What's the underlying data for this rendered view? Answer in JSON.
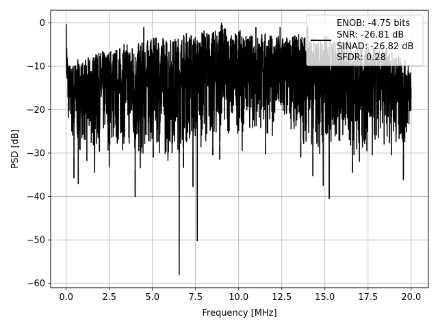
{
  "chart_data": {
    "type": "line",
    "title": "",
    "xlabel": "Frequency [MHz]",
    "ylabel": "PSD [dB]",
    "xlim": [
      -0.9,
      21.0
    ],
    "ylim": [
      -61.0,
      2.9
    ],
    "xticks": [
      0.0,
      2.5,
      5.0,
      7.5,
      10.0,
      12.5,
      15.0,
      17.5,
      20.0
    ],
    "xtick_labels": [
      "0.0",
      "2.5",
      "5.0",
      "7.5",
      "10.0",
      "12.5",
      "15.0",
      "17.5",
      "20.0"
    ],
    "yticks": [
      0,
      -10,
      -20,
      -30,
      -40,
      -50,
      -60
    ],
    "ytick_labels": [
      "0",
      "−10",
      "−20",
      "−30",
      "−40",
      "−50",
      "−60"
    ],
    "grid": true,
    "legend_placement": "top-right",
    "legend_entries": [
      "ENOB: -4.75 bits",
      "SNR: -26.81 dB",
      "SINAD: -26.82 dB",
      "SFDR: 0.28"
    ],
    "series": [
      {
        "color": "#000000",
        "x": [
          0.0,
          0.05,
          0.1,
          0.15,
          0.2,
          0.3,
          0.4,
          0.5,
          0.6,
          0.7,
          0.8,
          0.9,
          1.0,
          1.2,
          1.5,
          1.8,
          2.0,
          2.5,
          3.0,
          3.5,
          4.0,
          4.5,
          5.0,
          5.5,
          6.0,
          6.5,
          6.6,
          7.0,
          7.5,
          7.6,
          8.0,
          8.5,
          9.0,
          9.5,
          10.0,
          10.5,
          11.0,
          11.5,
          12.0,
          12.5,
          13.0,
          13.5,
          14.0,
          14.5,
          15.0,
          15.2,
          15.5,
          16.0,
          16.5,
          17.0,
          17.5,
          18.0,
          18.5,
          19.0,
          19.5,
          19.8,
          20.0
        ],
        "upper": [
          -0.3,
          -5.0,
          -8.0,
          -9.5,
          -9.0,
          -10.0,
          -9.0,
          -8.5,
          -9.5,
          -8.0,
          -9.0,
          -8.5,
          -9.0,
          -8.0,
          -7.5,
          -7.0,
          -6.5,
          -6.0,
          -5.5,
          -4.5,
          -5.0,
          -4.0,
          -3.5,
          -3.0,
          -3.5,
          -3.0,
          -2.5,
          -2.0,
          -2.5,
          -3.0,
          -1.5,
          -2.0,
          0.0,
          -2.5,
          -1.5,
          -3.0,
          -2.5,
          -2.0,
          -3.0,
          -2.5,
          -3.5,
          -2.0,
          -3.0,
          -3.5,
          -2.5,
          -3.0,
          -4.0,
          -3.5,
          -4.5,
          -5.0,
          -4.5,
          -6.0,
          -5.5,
          -7.0,
          -8.0,
          -9.0,
          -9.5
        ],
        "lower": [
          -14.0,
          -22.0,
          -24.0,
          -25.0,
          -24.0,
          -28.0,
          -30.0,
          -32.0,
          -28.0,
          -33.0,
          -30.0,
          -27.0,
          -29.0,
          -31.0,
          -30.0,
          -33.0,
          -29.0,
          -30.0,
          -31.0,
          -29.0,
          -34.0,
          -33.0,
          -28.0,
          -31.0,
          -32.0,
          -30.0,
          -31.0,
          -29.0,
          -30.0,
          -31.0,
          -27.0,
          -29.0,
          -28.0,
          -27.0,
          -26.0,
          -25.0,
          -27.0,
          -28.0,
          -26.0,
          -27.0,
          -25.0,
          -27.0,
          -29.0,
          -31.0,
          -33.0,
          -31.0,
          -29.0,
          -30.0,
          -31.0,
          -32.0,
          -31.0,
          -30.0,
          -29.0,
          -28.0,
          -31.0,
          -27.0,
          -26.0
        ]
      }
    ],
    "dips": [
      {
        "x": 0.45,
        "y": -35.8
      },
      {
        "x": 0.7,
        "y": -37.1
      },
      {
        "x": 1.2,
        "y": -31.8
      },
      {
        "x": 1.65,
        "y": -34.5
      },
      {
        "x": 2.5,
        "y": -33.2
      },
      {
        "x": 4.0,
        "y": -40.1
      },
      {
        "x": 4.3,
        "y": -33.5
      },
      {
        "x": 5.05,
        "y": -31.0
      },
      {
        "x": 5.9,
        "y": -31.0
      },
      {
        "x": 6.55,
        "y": -58.1
      },
      {
        "x": 6.8,
        "y": -33.4
      },
      {
        "x": 7.35,
        "y": -37.8
      },
      {
        "x": 7.6,
        "y": -50.3
      },
      {
        "x": 8.5,
        "y": -30.5
      },
      {
        "x": 8.9,
        "y": -31.5
      },
      {
        "x": 10.2,
        "y": -29.5
      },
      {
        "x": 11.55,
        "y": -30.3
      },
      {
        "x": 13.6,
        "y": -31.0
      },
      {
        "x": 14.3,
        "y": -35.3
      },
      {
        "x": 14.9,
        "y": -37.5
      },
      {
        "x": 15.25,
        "y": -40.5
      },
      {
        "x": 16.6,
        "y": -34.5
      },
      {
        "x": 17.0,
        "y": -30.0
      },
      {
        "x": 17.75,
        "y": -29.5
      },
      {
        "x": 18.85,
        "y": -30.5
      },
      {
        "x": 19.55,
        "y": -36.2
      }
    ],
    "peaks": [
      {
        "x": 0.0,
        "y": -0.3
      },
      {
        "x": 4.5,
        "y": -1.0
      },
      {
        "x": 9.0,
        "y": 0.0
      },
      {
        "x": 11.0,
        "y": -1.0
      },
      {
        "x": 12.4,
        "y": -1.0
      },
      {
        "x": 14.0,
        "y": -1.0
      }
    ]
  }
}
